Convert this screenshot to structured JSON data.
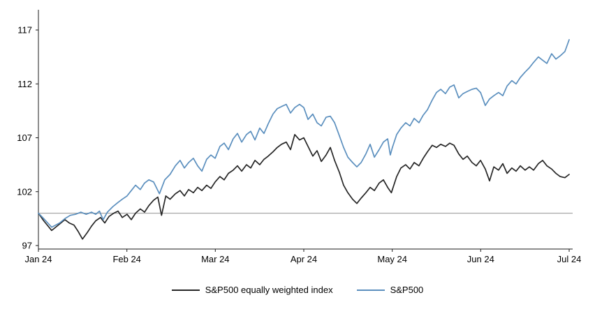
{
  "page": {
    "background": "#ffffff"
  },
  "chart_data": {
    "type": "line",
    "title": "",
    "xlabel": "",
    "ylabel": "",
    "grid": "off",
    "legend_position": "bottom-center",
    "x_axis": {
      "tick_labels": [
        "Jan 24",
        "Feb 24",
        "Mar 24",
        "Apr 24",
        "May 24",
        "Jun 24",
        "Jul 24"
      ],
      "tick_positions": [
        0,
        0.1667,
        0.3333,
        0.5,
        0.6667,
        0.8333,
        1
      ]
    },
    "y_axis": {
      "tick_labels": [
        "97",
        "102",
        "107",
        "112",
        "117"
      ],
      "ticks": [
        97,
        102,
        107,
        112,
        117
      ],
      "range": [
        97,
        117
      ]
    },
    "reference_line": {
      "value": 100,
      "color": "#a8a8a8"
    },
    "axis_color": "#1a1a1a",
    "series": [
      {
        "name": "S&P500 equally weighted index",
        "color": "#262626",
        "points": [
          [
            0,
            100
          ],
          [
            0.01,
            99.3
          ],
          [
            0.025,
            98.4
          ],
          [
            0.04,
            99
          ],
          [
            0.05,
            99.4
          ],
          [
            0.058,
            99.1
          ],
          [
            0.067,
            98.9
          ],
          [
            0.075,
            98.3
          ],
          [
            0.083,
            97.6
          ],
          [
            0.092,
            98.2
          ],
          [
            0.1,
            98.8
          ],
          [
            0.108,
            99.3
          ],
          [
            0.117,
            99.6
          ],
          [
            0.125,
            99.1
          ],
          [
            0.133,
            99.7
          ],
          [
            0.142,
            100
          ],
          [
            0.15,
            100.2
          ],
          [
            0.158,
            99.6
          ],
          [
            0.167,
            99.9
          ],
          [
            0.175,
            99.4
          ],
          [
            0.183,
            100
          ],
          [
            0.192,
            100.4
          ],
          [
            0.2,
            100.1
          ],
          [
            0.208,
            100.7
          ],
          [
            0.217,
            101.2
          ],
          [
            0.225,
            101.5
          ],
          [
            0.232,
            99.8
          ],
          [
            0.24,
            101.6
          ],
          [
            0.248,
            101.3
          ],
          [
            0.258,
            101.8
          ],
          [
            0.267,
            102.1
          ],
          [
            0.275,
            101.6
          ],
          [
            0.283,
            102.2
          ],
          [
            0.292,
            101.9
          ],
          [
            0.3,
            102.4
          ],
          [
            0.308,
            102.1
          ],
          [
            0.317,
            102.6
          ],
          [
            0.325,
            102.3
          ],
          [
            0.333,
            102.9
          ],
          [
            0.342,
            103.4
          ],
          [
            0.35,
            103.1
          ],
          [
            0.358,
            103.7
          ],
          [
            0.367,
            104
          ],
          [
            0.375,
            104.4
          ],
          [
            0.383,
            103.9
          ],
          [
            0.392,
            104.5
          ],
          [
            0.4,
            104.2
          ],
          [
            0.408,
            104.9
          ],
          [
            0.417,
            104.5
          ],
          [
            0.425,
            105
          ],
          [
            0.433,
            105.3
          ],
          [
            0.442,
            105.7
          ],
          [
            0.45,
            106.1
          ],
          [
            0.458,
            106.4
          ],
          [
            0.467,
            106.6
          ],
          [
            0.475,
            105.9
          ],
          [
            0.483,
            107.3
          ],
          [
            0.492,
            106.8
          ],
          [
            0.5,
            107
          ],
          [
            0.508,
            106.2
          ],
          [
            0.517,
            105.3
          ],
          [
            0.525,
            105.8
          ],
          [
            0.533,
            104.8
          ],
          [
            0.542,
            105.4
          ],
          [
            0.55,
            106.1
          ],
          [
            0.558,
            104.9
          ],
          [
            0.567,
            103.8
          ],
          [
            0.575,
            102.6
          ],
          [
            0.583,
            101.9
          ],
          [
            0.592,
            101.3
          ],
          [
            0.6,
            100.9
          ],
          [
            0.608,
            101.4
          ],
          [
            0.617,
            101.9
          ],
          [
            0.625,
            102.4
          ],
          [
            0.633,
            102.1
          ],
          [
            0.642,
            102.8
          ],
          [
            0.65,
            103.1
          ],
          [
            0.658,
            102.4
          ],
          [
            0.665,
            101.9
          ],
          [
            0.675,
            103.4
          ],
          [
            0.683,
            104.2
          ],
          [
            0.692,
            104.5
          ],
          [
            0.7,
            104.1
          ],
          [
            0.708,
            104.7
          ],
          [
            0.717,
            104.4
          ],
          [
            0.725,
            105.1
          ],
          [
            0.733,
            105.7
          ],
          [
            0.742,
            106.3
          ],
          [
            0.75,
            106.1
          ],
          [
            0.758,
            106.4
          ],
          [
            0.767,
            106.2
          ],
          [
            0.775,
            106.5
          ],
          [
            0.783,
            106.3
          ],
          [
            0.792,
            105.5
          ],
          [
            0.8,
            105
          ],
          [
            0.808,
            105.3
          ],
          [
            0.817,
            104.7
          ],
          [
            0.825,
            104.4
          ],
          [
            0.833,
            104.9
          ],
          [
            0.842,
            104.1
          ],
          [
            0.85,
            103
          ],
          [
            0.858,
            104.3
          ],
          [
            0.867,
            104
          ],
          [
            0.875,
            104.6
          ],
          [
            0.883,
            103.7
          ],
          [
            0.892,
            104.2
          ],
          [
            0.9,
            103.9
          ],
          [
            0.908,
            104.4
          ],
          [
            0.917,
            104
          ],
          [
            0.925,
            104.3
          ],
          [
            0.933,
            104
          ],
          [
            0.942,
            104.6
          ],
          [
            0.95,
            104.9
          ],
          [
            0.958,
            104.4
          ],
          [
            0.967,
            104.1
          ],
          [
            0.975,
            103.7
          ],
          [
            0.983,
            103.4
          ],
          [
            0.992,
            103.3
          ],
          [
            1,
            103.6
          ]
        ]
      },
      {
        "name": "S&P500",
        "color": "#5b8fbe",
        "points": [
          [
            0,
            100
          ],
          [
            0.01,
            99.5
          ],
          [
            0.025,
            98.7
          ],
          [
            0.04,
            99.1
          ],
          [
            0.05,
            99.5
          ],
          [
            0.06,
            99.8
          ],
          [
            0.07,
            99.9
          ],
          [
            0.08,
            100.1
          ],
          [
            0.09,
            99.9
          ],
          [
            0.1,
            100.1
          ],
          [
            0.108,
            99.9
          ],
          [
            0.115,
            100.2
          ],
          [
            0.122,
            99.4
          ],
          [
            0.13,
            100.1
          ],
          [
            0.14,
            100.6
          ],
          [
            0.15,
            101
          ],
          [
            0.158,
            101.3
          ],
          [
            0.167,
            101.6
          ],
          [
            0.175,
            102.1
          ],
          [
            0.183,
            102.6
          ],
          [
            0.192,
            102.2
          ],
          [
            0.2,
            102.8
          ],
          [
            0.208,
            103.1
          ],
          [
            0.217,
            102.9
          ],
          [
            0.228,
            101.8
          ],
          [
            0.238,
            103.1
          ],
          [
            0.248,
            103.6
          ],
          [
            0.258,
            104.4
          ],
          [
            0.267,
            104.9
          ],
          [
            0.275,
            104.2
          ],
          [
            0.283,
            104.7
          ],
          [
            0.292,
            105.1
          ],
          [
            0.3,
            104.4
          ],
          [
            0.308,
            103.9
          ],
          [
            0.317,
            105
          ],
          [
            0.325,
            105.4
          ],
          [
            0.333,
            105.1
          ],
          [
            0.342,
            106.2
          ],
          [
            0.35,
            106.5
          ],
          [
            0.358,
            105.9
          ],
          [
            0.367,
            106.9
          ],
          [
            0.375,
            107.4
          ],
          [
            0.383,
            106.6
          ],
          [
            0.392,
            107.3
          ],
          [
            0.4,
            107.6
          ],
          [
            0.408,
            106.8
          ],
          [
            0.417,
            107.9
          ],
          [
            0.425,
            107.4
          ],
          [
            0.433,
            108.3
          ],
          [
            0.442,
            109.2
          ],
          [
            0.45,
            109.7
          ],
          [
            0.458,
            109.9
          ],
          [
            0.467,
            110.1
          ],
          [
            0.475,
            109.3
          ],
          [
            0.483,
            109.8
          ],
          [
            0.492,
            110.1
          ],
          [
            0.5,
            109.8
          ],
          [
            0.508,
            108.7
          ],
          [
            0.517,
            109.2
          ],
          [
            0.525,
            108.4
          ],
          [
            0.533,
            108.1
          ],
          [
            0.542,
            108.9
          ],
          [
            0.55,
            109
          ],
          [
            0.558,
            108.4
          ],
          [
            0.567,
            107.2
          ],
          [
            0.575,
            106.1
          ],
          [
            0.583,
            105.2
          ],
          [
            0.592,
            104.7
          ],
          [
            0.6,
            104.3
          ],
          [
            0.608,
            104.7
          ],
          [
            0.617,
            105.5
          ],
          [
            0.625,
            106.4
          ],
          [
            0.633,
            105.2
          ],
          [
            0.642,
            105.9
          ],
          [
            0.65,
            106.6
          ],
          [
            0.658,
            106.9
          ],
          [
            0.663,
            105.4
          ],
          [
            0.667,
            106.1
          ],
          [
            0.675,
            107.3
          ],
          [
            0.683,
            107.9
          ],
          [
            0.692,
            108.4
          ],
          [
            0.7,
            108.1
          ],
          [
            0.708,
            108.8
          ],
          [
            0.717,
            108.4
          ],
          [
            0.725,
            109.1
          ],
          [
            0.733,
            109.6
          ],
          [
            0.742,
            110.5
          ],
          [
            0.75,
            111.2
          ],
          [
            0.758,
            111.5
          ],
          [
            0.767,
            111.1
          ],
          [
            0.775,
            111.7
          ],
          [
            0.783,
            111.9
          ],
          [
            0.792,
            110.7
          ],
          [
            0.8,
            111.1
          ],
          [
            0.808,
            111.3
          ],
          [
            0.817,
            111.5
          ],
          [
            0.825,
            111.6
          ],
          [
            0.833,
            111.2
          ],
          [
            0.842,
            110
          ],
          [
            0.85,
            110.6
          ],
          [
            0.858,
            110.9
          ],
          [
            0.867,
            111.2
          ],
          [
            0.875,
            110.9
          ],
          [
            0.883,
            111.8
          ],
          [
            0.892,
            112.3
          ],
          [
            0.9,
            112
          ],
          [
            0.908,
            112.6
          ],
          [
            0.917,
            113.1
          ],
          [
            0.925,
            113.5
          ],
          [
            0.933,
            114
          ],
          [
            0.942,
            114.5
          ],
          [
            0.95,
            114.2
          ],
          [
            0.958,
            113.9
          ],
          [
            0.967,
            114.8
          ],
          [
            0.975,
            114.3
          ],
          [
            0.983,
            114.6
          ],
          [
            0.992,
            115
          ],
          [
            1,
            116.1
          ]
        ]
      }
    ]
  }
}
